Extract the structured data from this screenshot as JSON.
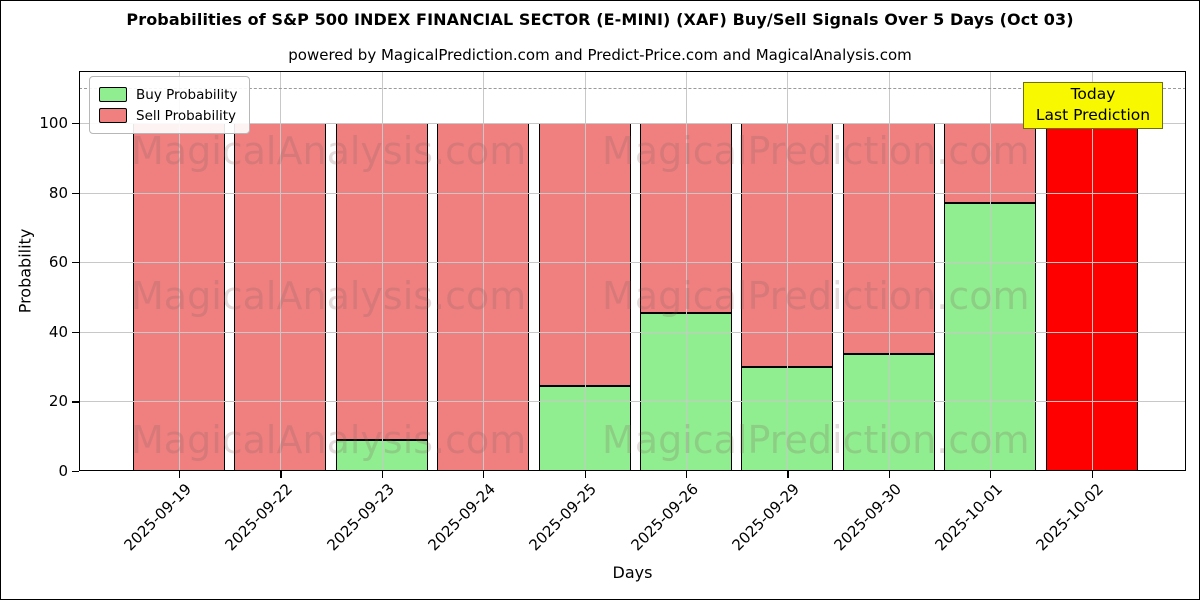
{
  "header": {
    "title": "Probabilities of S&P 500 INDEX FINANCIAL SECTOR (E-MINI) (XAF) Buy/Sell Signals Over 5 Days (Oct 03)",
    "subtitle": "powered by MagicalPrediction.com and Predict-Price.com and MagicalAnalysis.com"
  },
  "watermark": {
    "left": "MagicalAnalysis.com",
    "right": "MagicalPrediction.com"
  },
  "chart_data": {
    "type": "bar",
    "stacked": true,
    "title": "Probabilities of S&P 500 INDEX FINANCIAL SECTOR (E-MINI) (XAF) Buy/Sell Signals Over 5 Days (Oct 03)",
    "xlabel": "Days",
    "ylabel": "Probability",
    "categories": [
      "2025-09-19",
      "2025-09-22",
      "2025-09-23",
      "2025-09-24",
      "2025-09-25",
      "2025-09-26",
      "2025-09-29",
      "2025-09-30",
      "2025-10-01",
      "2025-10-02"
    ],
    "series": [
      {
        "name": "Buy Probability",
        "color": "#90ee90",
        "values": [
          0,
          0,
          9,
          0,
          24.5,
          45.5,
          30,
          33.5,
          77,
          0
        ]
      },
      {
        "name": "Sell Probability",
        "color": "#f08080",
        "values": [
          100,
          100,
          91,
          100,
          75.5,
          54.5,
          70,
          66.5,
          23,
          100
        ]
      }
    ],
    "highlight": {
      "index": 9,
      "sell_color": "#ff0000",
      "label_line1": "Today",
      "label_line2": "Last Prediction"
    },
    "ylim": [
      0,
      115
    ],
    "yticks": [
      0,
      20,
      40,
      60,
      80,
      100
    ],
    "dashed_line_y": 110,
    "grid": true,
    "legend_position": "upper left",
    "colors": {
      "edge": "#000000",
      "grid": "#c8c8c8",
      "annotation_bg": "#f8f800",
      "annotation_border": "#70700a"
    }
  }
}
